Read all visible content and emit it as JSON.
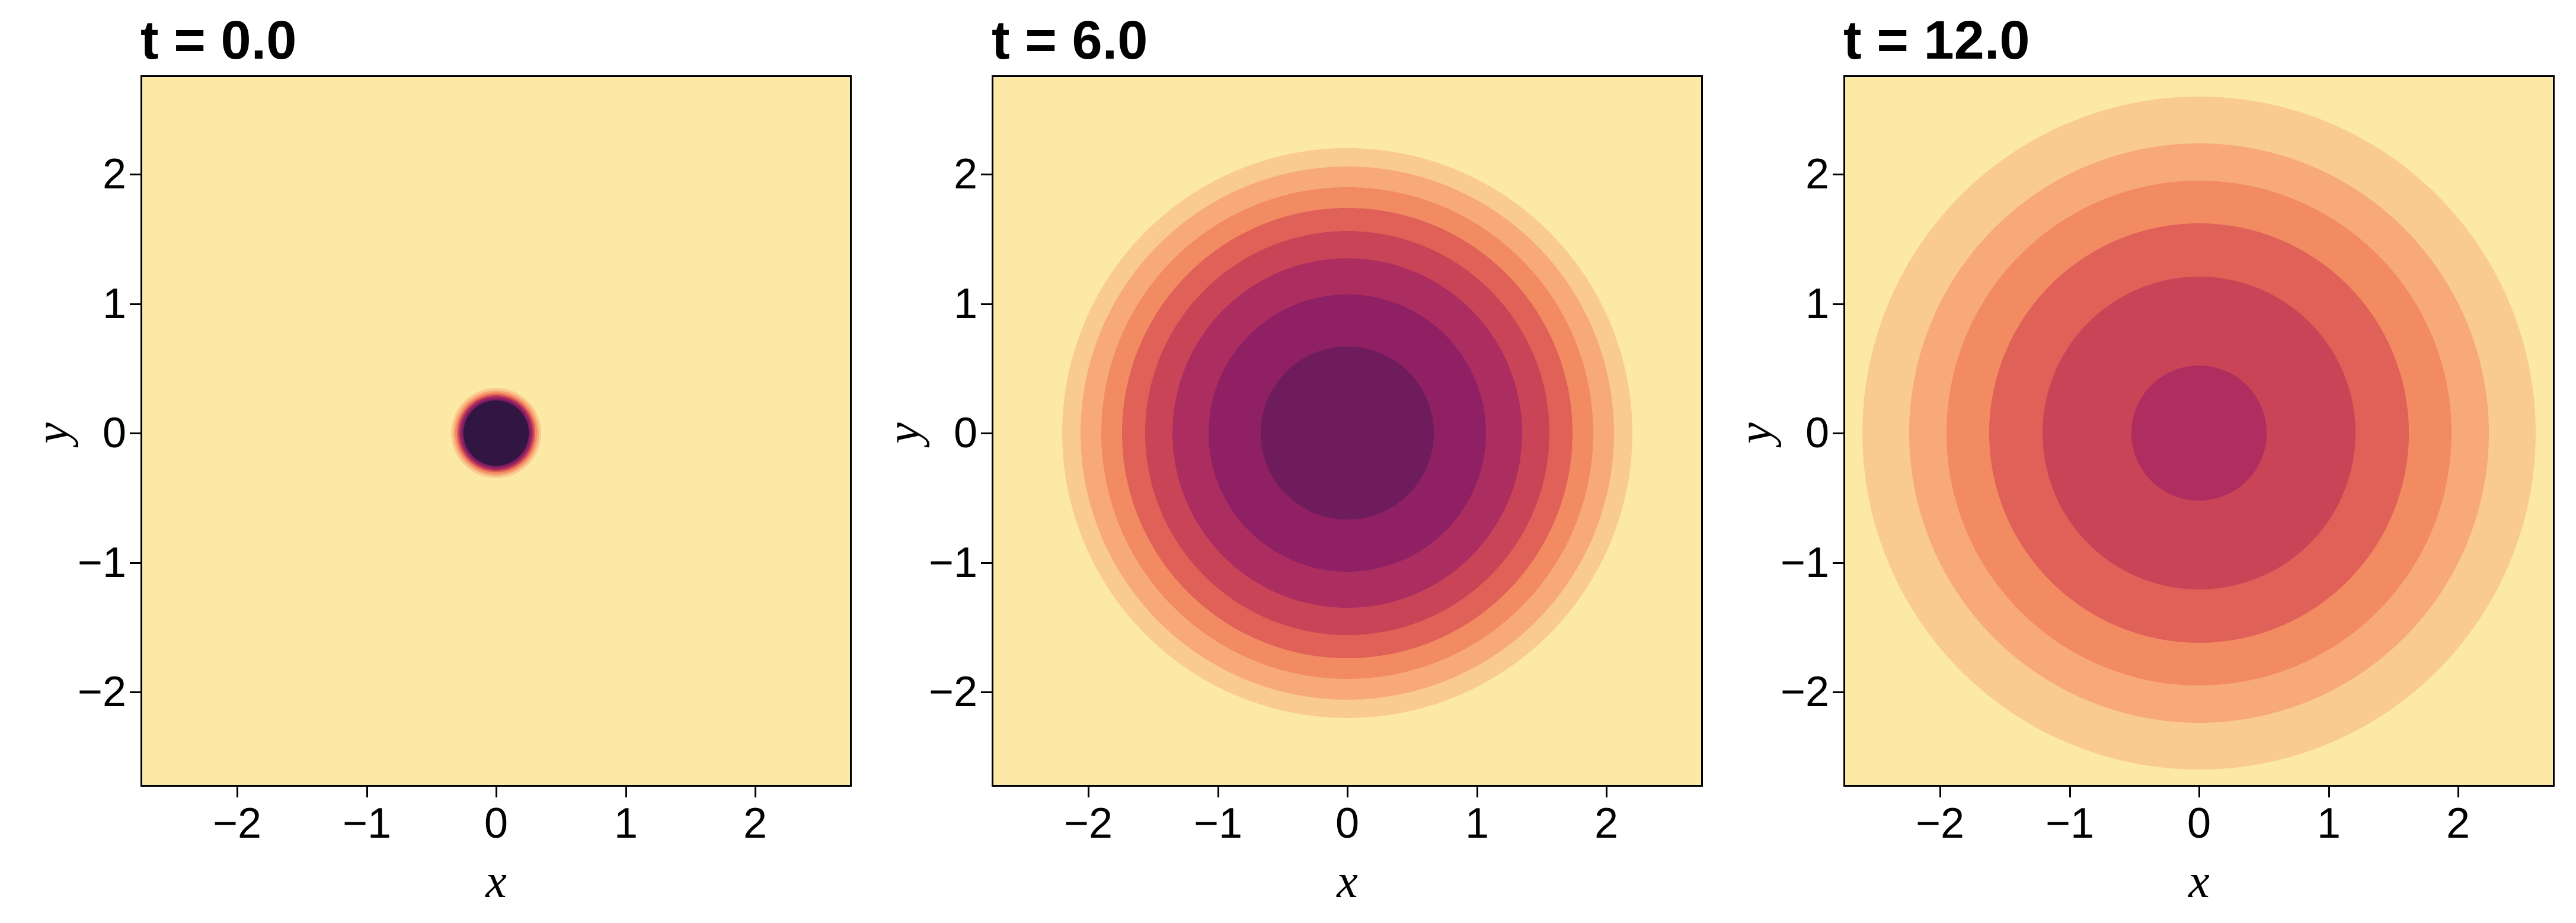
{
  "figure": {
    "background": "#ffffff",
    "panel_background": "#FCE9A5",
    "border_color": "#000000",
    "text_color": "#000000"
  },
  "axes": {
    "x_label": "x",
    "y_label": "y",
    "x_range": [
      -2.75,
      2.75
    ],
    "y_range": [
      -2.75,
      2.75
    ],
    "x_ticks": [
      {
        "value": -2,
        "label": "−2"
      },
      {
        "value": -1,
        "label": "−1"
      },
      {
        "value": 0,
        "label": "0"
      },
      {
        "value": 1,
        "label": "1"
      },
      {
        "value": 2,
        "label": "2"
      }
    ],
    "y_ticks": [
      {
        "value": 2,
        "label": "2"
      },
      {
        "value": 1,
        "label": "1"
      },
      {
        "value": 0,
        "label": "0"
      },
      {
        "value": -1,
        "label": "−1"
      },
      {
        "value": -2,
        "label": "−2"
      }
    ]
  },
  "chart_data": {
    "type": "filled_contour",
    "description": "Diffusion of a concentrated spot over time: filled contour maps of a radially symmetric Gaussian concentration field centered at (0,0) at t = 0.0, 6.0 and 12.0. Pale yellow = low concentration, dark purple = high concentration. Ring radius is given in data units (same scale as the x/y axes), listed from the innermost (peak) band outward.",
    "x_range": [
      -2.75,
      2.75
    ],
    "y_range": [
      -2.75,
      2.75
    ],
    "level_colors_low_to_high": [
      "#FCE9A5",
      "#FACB90",
      "#F8A979",
      "#F28A62",
      "#E06158",
      "#CA4457",
      "#AC2E61",
      "#8E2063",
      "#6E1C5C",
      "#301640"
    ],
    "panels": [
      {
        "title": "t = 0.0",
        "time": 0.0,
        "center": [
          0,
          0
        ],
        "rings": [
          {
            "radius": 0.25,
            "color": "#301640"
          },
          {
            "radius": 0.262,
            "color": "#6E1C5C"
          },
          {
            "radius": 0.273,
            "color": "#8E2063"
          },
          {
            "radius": 0.283,
            "color": "#AC2E61"
          },
          {
            "radius": 0.293,
            "color": "#CA4457"
          },
          {
            "radius": 0.304,
            "color": "#E06158"
          },
          {
            "radius": 0.317,
            "color": "#F28A62"
          },
          {
            "radius": 0.33,
            "color": "#F8A979"
          },
          {
            "radius": 0.348,
            "color": "#FACB90"
          }
        ]
      },
      {
        "title": "t = 6.0",
        "time": 6.0,
        "center": [
          0,
          0
        ],
        "rings": [
          {
            "radius": 0.67,
            "color": "#6E1C5C"
          },
          {
            "radius": 1.07,
            "color": "#8E2063"
          },
          {
            "radius": 1.35,
            "color": "#AC2E61"
          },
          {
            "radius": 1.56,
            "color": "#CA4457"
          },
          {
            "radius": 1.74,
            "color": "#E06158"
          },
          {
            "radius": 1.9,
            "color": "#F28A62"
          },
          {
            "radius": 2.06,
            "color": "#F8A979"
          },
          {
            "radius": 2.2,
            "color": "#FACB90"
          }
        ]
      },
      {
        "title": "t = 12.0",
        "time": 12.0,
        "center": [
          0,
          0
        ],
        "rings": [
          {
            "radius": 0.52,
            "color": "#B02D5F"
          },
          {
            "radius": 1.21,
            "color": "#CA4457"
          },
          {
            "radius": 1.62,
            "color": "#E06158"
          },
          {
            "radius": 1.95,
            "color": "#F28A62"
          },
          {
            "radius": 2.24,
            "color": "#F8A979"
          },
          {
            "radius": 2.6,
            "color": "#FACB90"
          }
        ]
      }
    ]
  }
}
